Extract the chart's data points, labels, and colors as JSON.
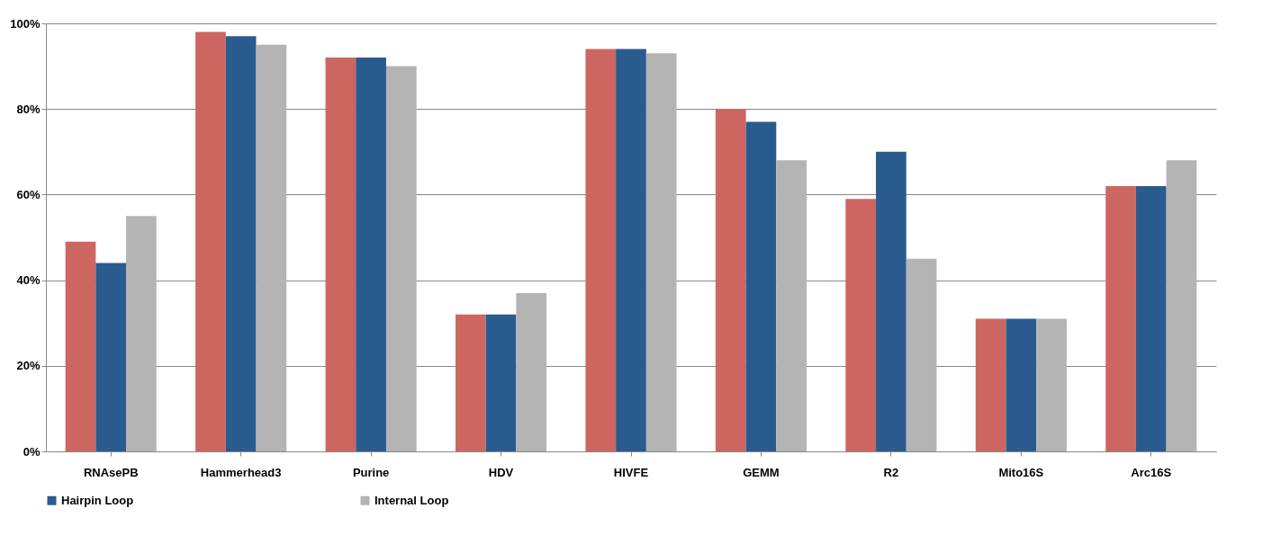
{
  "chart_data": {
    "type": "bar",
    "categories": [
      "RNAsePB",
      "Hammerhead3",
      "Purine",
      "HDV",
      "HIVFE",
      "GEMM",
      "R2",
      "Mito16S",
      "Arc16S"
    ],
    "series": [
      {
        "color": "#cd6660",
        "values": [
          49,
          98,
          92,
          32,
          94,
          80,
          59,
          31,
          62
        ]
      },
      {
        "name": "Hairpin Loop",
        "color": "#2a5b8f",
        "values": [
          44,
          97,
          92,
          32,
          94,
          77,
          70,
          31,
          62
        ]
      },
      {
        "name": "Internal Loop",
        "color": "#b4b4b4",
        "values": [
          55,
          95,
          90,
          37,
          93,
          68,
          45,
          31,
          68
        ]
      }
    ],
    "ylim": [
      0,
      100
    ],
    "yticks": [
      {
        "value": 0,
        "label": "0%"
      },
      {
        "value": 20,
        "label": "20%"
      },
      {
        "value": 40,
        "label": "40%"
      },
      {
        "value": 60,
        "label": "60%"
      },
      {
        "value": 80,
        "label": "80%"
      },
      {
        "value": 100,
        "label": "100%"
      }
    ],
    "grid": "y",
    "legend": "bottom"
  }
}
